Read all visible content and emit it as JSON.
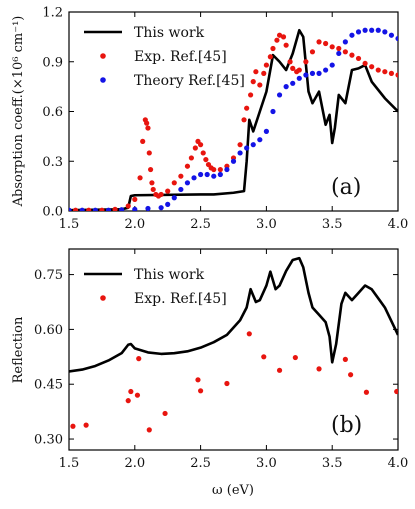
{
  "chart_data": [
    {
      "type": "line",
      "panel_label": "(a)",
      "xlabel": "",
      "ylabel": "Absorption coeff.(×10⁶ cm⁻¹)",
      "xlim": [
        1.5,
        4.0
      ],
      "ylim": [
        0.0,
        1.2
      ],
      "xticks": [
        "1.5",
        "2.0",
        "2.5",
        "3.0",
        "3.5",
        "4.0"
      ],
      "yticks": [
        "0.0",
        "0.3",
        "0.6",
        "0.9",
        "1.2"
      ],
      "legend_position": "top-left",
      "series": [
        {
          "name": "This work",
          "kind": "line",
          "color": "#000000",
          "x": [
            1.5,
            1.9,
            1.95,
            1.97,
            2.0,
            2.5,
            2.6,
            2.75,
            2.83,
            2.85,
            2.87,
            2.9,
            2.95,
            3.0,
            3.05,
            3.1,
            3.15,
            3.2,
            3.25,
            3.28,
            3.32,
            3.35,
            3.4,
            3.45,
            3.48,
            3.5,
            3.52,
            3.55,
            3.6,
            3.65,
            3.7,
            3.75,
            3.8,
            3.9,
            4.0
          ],
          "y": [
            0.005,
            0.01,
            0.02,
            0.09,
            0.095,
            0.1,
            0.1,
            0.11,
            0.12,
            0.3,
            0.55,
            0.48,
            0.6,
            0.72,
            0.94,
            0.9,
            0.85,
            0.95,
            1.09,
            1.05,
            0.72,
            0.65,
            0.72,
            0.52,
            0.58,
            0.41,
            0.5,
            0.7,
            0.65,
            0.85,
            0.86,
            0.88,
            0.78,
            0.68,
            0.6
          ]
        },
        {
          "name": "Exp. Ref.[45]",
          "kind": "scatter",
          "color": "#e8150f",
          "x": [
            1.55,
            1.65,
            1.75,
            1.85,
            1.95,
            2.0,
            2.04,
            2.06,
            2.08,
            2.09,
            2.1,
            2.11,
            2.12,
            2.13,
            2.14,
            2.16,
            2.18,
            2.2,
            2.25,
            2.3,
            2.35,
            2.4,
            2.43,
            2.46,
            2.48,
            2.5,
            2.52,
            2.54,
            2.56,
            2.58,
            2.6,
            2.65,
            2.7,
            2.75,
            2.8,
            2.83,
            2.85,
            2.88,
            2.9,
            2.92,
            2.95,
            2.98,
            3.0,
            3.03,
            3.05,
            3.08,
            3.1,
            3.13,
            3.15,
            3.18,
            3.2,
            3.23,
            3.25,
            3.3,
            3.35,
            3.4,
            3.45,
            3.5,
            3.55,
            3.6,
            3.65,
            3.7,
            3.75,
            3.8,
            3.85,
            3.9,
            3.95,
            4.0
          ],
          "y": [
            0.005,
            0.005,
            0.005,
            0.01,
            0.03,
            0.07,
            0.2,
            0.42,
            0.55,
            0.53,
            0.5,
            0.35,
            0.25,
            0.17,
            0.13,
            0.1,
            0.09,
            0.1,
            0.12,
            0.17,
            0.21,
            0.27,
            0.32,
            0.38,
            0.42,
            0.4,
            0.35,
            0.31,
            0.28,
            0.26,
            0.25,
            0.25,
            0.27,
            0.32,
            0.4,
            0.55,
            0.62,
            0.7,
            0.78,
            0.84,
            0.76,
            0.83,
            0.88,
            0.93,
            0.98,
            1.03,
            1.06,
            1.05,
            1.0,
            0.9,
            0.86,
            0.84,
            0.85,
            0.9,
            0.96,
            1.02,
            1.01,
            0.99,
            0.98,
            0.96,
            0.94,
            0.92,
            0.89,
            0.87,
            0.85,
            0.84,
            0.83,
            0.82
          ]
        },
        {
          "name": "Theory Ref.[45]",
          "kind": "scatter",
          "color": "#1414e6",
          "x": [
            1.5,
            1.6,
            1.7,
            1.8,
            1.9,
            2.0,
            2.1,
            2.2,
            2.25,
            2.3,
            2.35,
            2.4,
            2.45,
            2.5,
            2.55,
            2.6,
            2.65,
            2.7,
            2.75,
            2.8,
            2.85,
            2.9,
            2.95,
            3.0,
            3.05,
            3.1,
            3.15,
            3.2,
            3.25,
            3.3,
            3.35,
            3.4,
            3.45,
            3.5,
            3.55,
            3.6,
            3.65,
            3.7,
            3.75,
            3.8,
            3.85,
            3.9,
            3.95,
            4.0
          ],
          "y": [
            0.005,
            0.005,
            0.005,
            0.005,
            0.008,
            0.01,
            0.015,
            0.02,
            0.04,
            0.08,
            0.13,
            0.17,
            0.2,
            0.22,
            0.22,
            0.21,
            0.22,
            0.25,
            0.3,
            0.35,
            0.38,
            0.4,
            0.43,
            0.48,
            0.6,
            0.7,
            0.75,
            0.77,
            0.8,
            0.82,
            0.83,
            0.83,
            0.85,
            0.88,
            0.95,
            1.02,
            1.06,
            1.08,
            1.09,
            1.09,
            1.09,
            1.08,
            1.06,
            1.04
          ]
        }
      ]
    },
    {
      "type": "line",
      "panel_label": "(b)",
      "xlabel": "ω (eV)",
      "ylabel": "Reflection",
      "xlim": [
        1.5,
        4.0
      ],
      "ylim": [
        0.27,
        0.82
      ],
      "xticks": [
        "1.5",
        "2.0",
        "2.5",
        "3.0",
        "3.5",
        "4.0"
      ],
      "yticks": [
        "0.30",
        "0.45",
        "0.60",
        "0.75"
      ],
      "legend_position": "top-left",
      "series": [
        {
          "name": "This work",
          "kind": "line",
          "color": "#000000",
          "x": [
            1.5,
            1.6,
            1.7,
            1.8,
            1.9,
            1.95,
            1.97,
            2.0,
            2.1,
            2.2,
            2.3,
            2.4,
            2.5,
            2.6,
            2.7,
            2.8,
            2.85,
            2.88,
            2.92,
            2.95,
            3.0,
            3.03,
            3.07,
            3.1,
            3.15,
            3.2,
            3.25,
            3.28,
            3.32,
            3.35,
            3.4,
            3.45,
            3.48,
            3.5,
            3.53,
            3.57,
            3.6,
            3.65,
            3.7,
            3.75,
            3.8,
            3.9,
            4.0
          ],
          "y": [
            0.485,
            0.49,
            0.5,
            0.515,
            0.535,
            0.558,
            0.56,
            0.548,
            0.537,
            0.533,
            0.535,
            0.54,
            0.55,
            0.565,
            0.585,
            0.625,
            0.66,
            0.71,
            0.675,
            0.68,
            0.72,
            0.758,
            0.71,
            0.72,
            0.76,
            0.79,
            0.795,
            0.77,
            0.7,
            0.66,
            0.64,
            0.62,
            0.58,
            0.51,
            0.56,
            0.67,
            0.7,
            0.68,
            0.7,
            0.72,
            0.71,
            0.66,
            0.585
          ]
        },
        {
          "name": "Exp. Ref.[45]",
          "kind": "scatter",
          "color": "#e8150f",
          "x": [
            1.53,
            1.63,
            1.95,
            1.97,
            2.02,
            2.03,
            2.11,
            2.23,
            2.48,
            2.5,
            2.7,
            2.87,
            2.98,
            3.1,
            3.22,
            3.4,
            3.6,
            3.64,
            3.76,
            3.99
          ],
          "y": [
            0.335,
            0.338,
            0.405,
            0.43,
            0.42,
            0.52,
            0.325,
            0.37,
            0.462,
            0.432,
            0.452,
            0.588,
            0.525,
            0.488,
            0.523,
            0.492,
            0.518,
            0.476,
            0.428,
            0.43
          ]
        }
      ]
    }
  ]
}
